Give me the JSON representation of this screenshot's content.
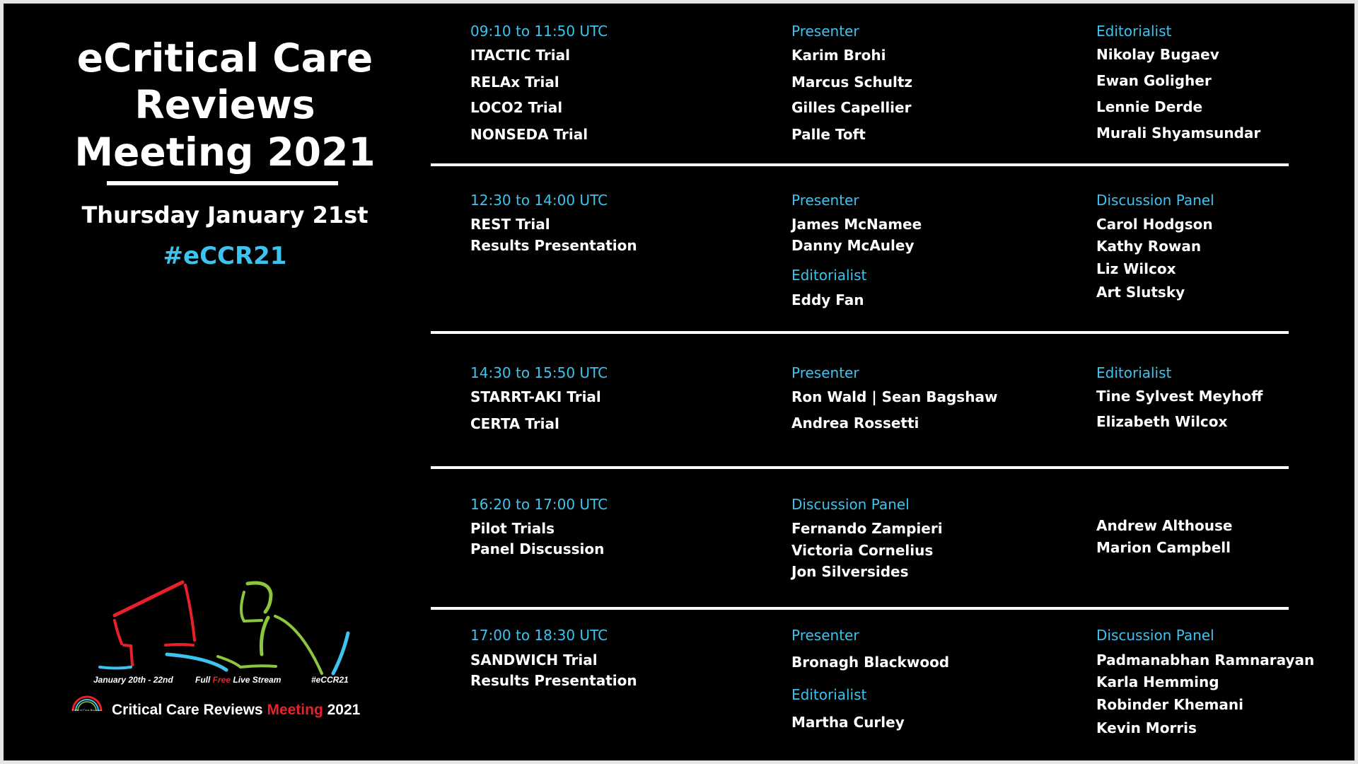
{
  "header": {
    "title_lines": [
      "eCritical Care",
      "Reviews",
      "Meeting 2021"
    ],
    "date": "Thursday January 21st",
    "hashtag": "#eCCR21"
  },
  "logo": {
    "dates": "January 20th - 22nd",
    "stream_pre": "Full ",
    "stream_free": "Free",
    "stream_post": " Live Stream",
    "hashtag": "#eCCR21",
    "badge_text": "Critical Care Reviews",
    "brand_pre": "Critical Care Reviews ",
    "brand_meeting": "Meeting",
    "brand_year": " 2021"
  },
  "colors": {
    "accent": "#3cc3ef",
    "red": "#e8202a",
    "green": "#8cc63f",
    "background": "#000000"
  },
  "sessions": [
    {
      "time": "09:10 to 11:50 UTC",
      "items": [
        "ITACTIC Trial",
        "RELAx Trial",
        "LOCO2 Trial",
        "NONSEDA Trial"
      ],
      "col2_heading": "Presenter",
      "col2": [
        "Karim Brohi",
        "Marcus Schultz",
        "Gilles Capellier",
        "Palle Toft"
      ],
      "col3_heading": "Editorialist",
      "col3": [
        "Nikolay Bugaev",
        "Ewan Goligher",
        "Lennie Derde",
        "Murali Shyamsundar"
      ]
    },
    {
      "time": "12:30 to 14:00 UTC",
      "items": [
        "REST Trial",
        "Results Presentation"
      ],
      "col2_heading": "Presenter",
      "col2": [
        "James McNamee",
        "Danny McAuley"
      ],
      "col2_heading_b": "Editorialist",
      "col2_b": [
        "Eddy Fan"
      ],
      "col3_heading": "Discussion Panel",
      "col3": [
        "Carol Hodgson",
        "Kathy Rowan",
        "Liz Wilcox",
        "Art Slutsky"
      ]
    },
    {
      "time": "14:30 to 15:50 UTC",
      "items": [
        "STARRT-AKI Trial",
        "CERTA Trial"
      ],
      "col2_heading": "Presenter",
      "col2": [
        "Ron Wald  |  Sean Bagshaw",
        "Andrea Rossetti"
      ],
      "col3_heading": "Editorialist",
      "col3": [
        "Tine Sylvest Meyhoff",
        "Elizabeth Wilcox"
      ]
    },
    {
      "time": "16:20 to 17:00 UTC",
      "items": [
        "Pilot Trials",
        "Panel Discussion"
      ],
      "col2_heading": "Discussion Panel",
      "col2": [
        "Fernando Zampieri",
        "Victoria Cornelius",
        "Jon Silversides"
      ],
      "col3": [
        "Andrew Althouse",
        "Marion Campbell"
      ]
    },
    {
      "time": "17:00 to 18:30 UTC",
      "items": [
        "SANDWICH Trial",
        "Results Presentation"
      ],
      "col2_heading": "Presenter",
      "col2": [
        "Bronagh Blackwood"
      ],
      "col2_heading_b": "Editorialist",
      "col2_b": [
        "Martha Curley"
      ],
      "col3_heading": "Discussion Panel",
      "col3": [
        "Padmanabhan Ramnarayan",
        "Karla Hemming",
        "Robinder Khemani",
        "Kevin Morris"
      ]
    }
  ]
}
